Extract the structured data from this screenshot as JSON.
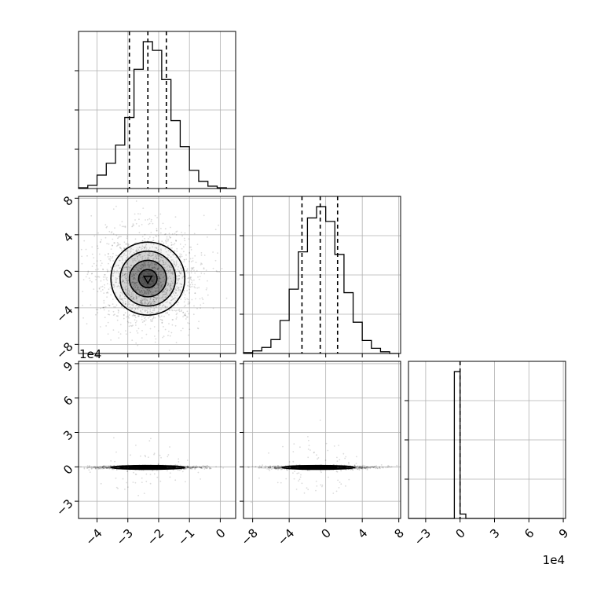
{
  "chart_data": {
    "type": "corner",
    "grid": true,
    "offset_labels": [
      "1e4",
      "1e4"
    ],
    "params": [
      {
        "xlim": [
          -4.6,
          0.5
        ],
        "ticks": [
          -4,
          -3,
          -2,
          -1,
          0
        ],
        "tick_labels": [
          "−4",
          "−3",
          "−2",
          "−1",
          "0"
        ],
        "quantiles": [
          -2.95,
          -2.35,
          -1.75
        ],
        "hist_bins": [
          -4.6,
          -4.3,
          -4.0,
          -3.7,
          -3.4,
          -3.1,
          -2.8,
          -2.5,
          -2.2,
          -1.9,
          -1.6,
          -1.3,
          -1.0,
          -0.7,
          -0.4,
          -0.1,
          0.2,
          0.5
        ],
        "hist_counts": [
          1,
          4,
          17,
          32,
          55,
          90,
          151,
          186,
          175,
          138,
          86,
          53,
          23,
          9,
          3,
          1,
          0
        ],
        "center": -2.35,
        "sigma": 0.6
      },
      {
        "xlim": [
          -9,
          8.2
        ],
        "ticks": [
          -8,
          -4,
          0,
          4,
          8
        ],
        "tick_labels": [
          "−8",
          "−4",
          "0",
          "4",
          "8"
        ],
        "quantiles": [
          -2.6,
          -0.6,
          1.3
        ],
        "hist_bins": [
          -9,
          -8,
          -7,
          -6,
          -5,
          -4,
          -3,
          -2,
          -1,
          0,
          1,
          2,
          3,
          4,
          5,
          6,
          7,
          8
        ],
        "hist_counts": [
          1,
          3,
          7,
          16,
          38,
          74,
          117,
          156,
          169,
          152,
          114,
          70,
          36,
          15,
          6,
          2,
          0
        ],
        "center": -0.8,
        "sigma": 2.0
      },
      {
        "xlim": [
          -45000,
          92000
        ],
        "ticks": [
          -30000,
          0,
          30000,
          60000,
          90000
        ],
        "tick_labels": [
          "−3",
          "0",
          "3",
          "6",
          "9"
        ],
        "quantiles": [
          0
        ],
        "hist_bins": [
          -45000,
          -40000,
          -35000,
          -30000,
          -25000,
          -20000,
          -15000,
          -10000,
          -5000,
          0,
          5000,
          10000,
          15000,
          20000,
          25000,
          30000,
          35000,
          40000,
          45000,
          50000,
          55000,
          60000,
          65000,
          70000,
          75000,
          80000,
          85000,
          90000
        ],
        "hist_counts": [
          0,
          0,
          0,
          0,
          0,
          0,
          0,
          0,
          1000,
          30,
          0,
          0,
          0,
          0,
          0,
          0,
          0,
          0,
          0,
          0,
          0,
          0,
          0,
          0,
          0,
          0,
          0
        ],
        "center": -500,
        "sigma": 1500
      }
    ]
  }
}
